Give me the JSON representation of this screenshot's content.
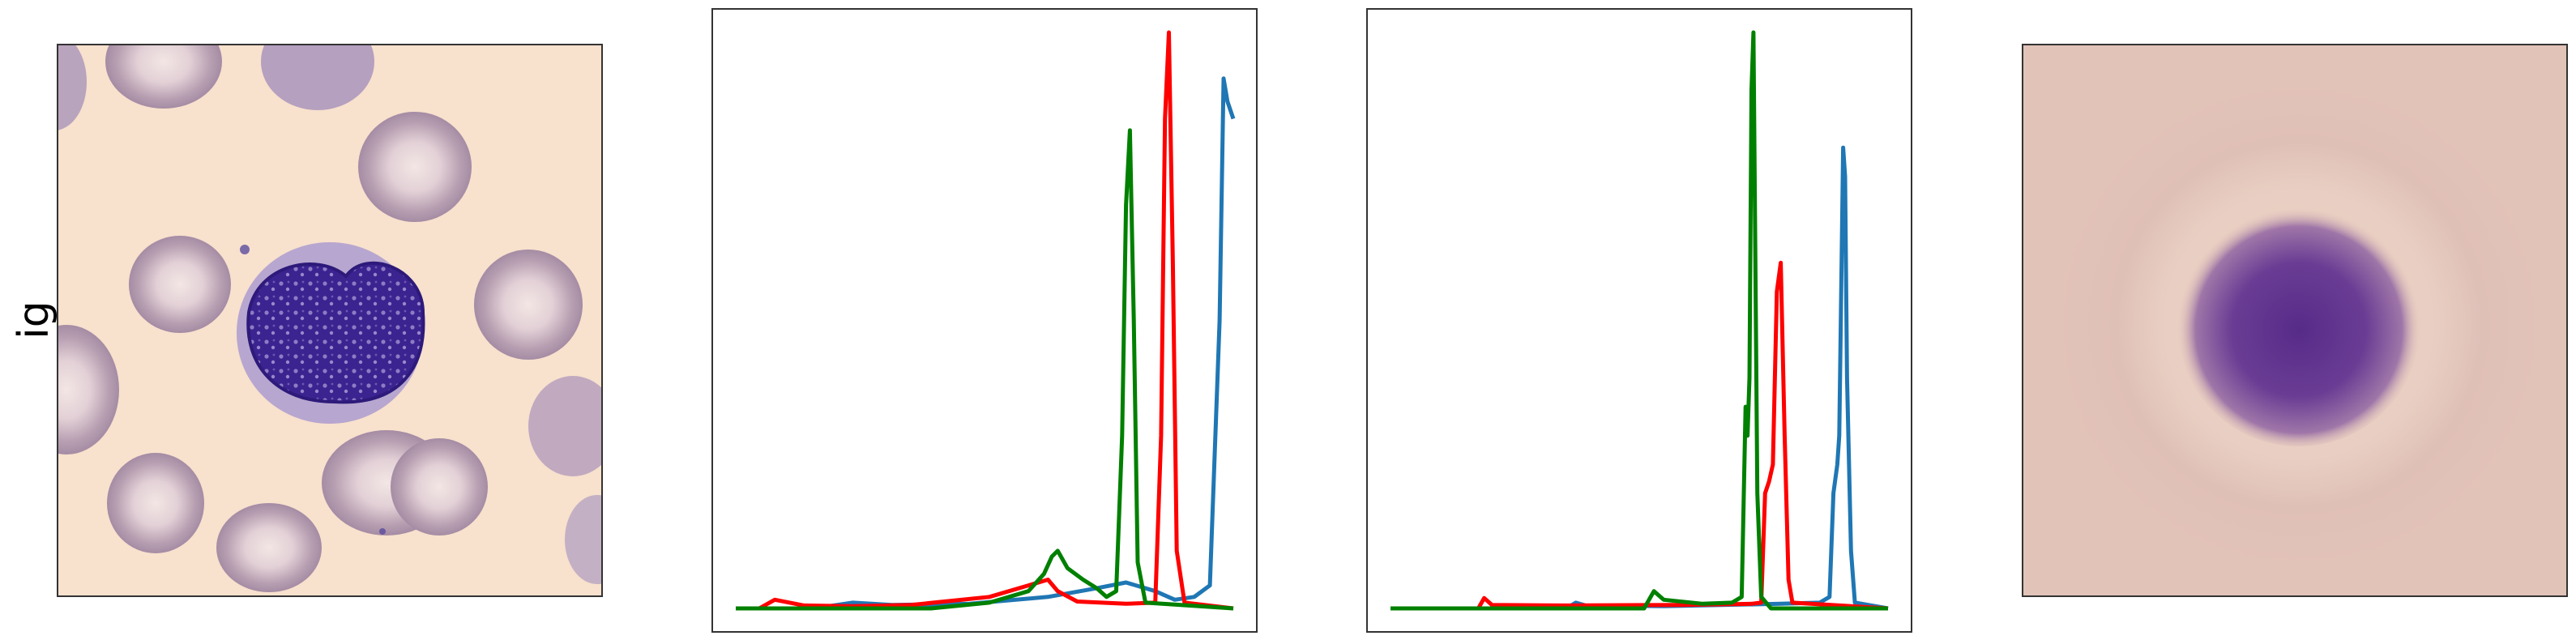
{
  "row_label": "ig",
  "colors": {
    "red": "#ff0000",
    "green": "#008000",
    "blue": "#1f77b4",
    "smear_background": "#f8e0cc",
    "rbc": "#c4a8b4",
    "nucleus": "#3a1f86",
    "mean_image_background": "#e2c3b8",
    "mean_image_center": "#5b2e8c"
  },
  "panels": {
    "image": {
      "icon": "blood-smear-image",
      "description_class": "immature granulocyte cell photo"
    },
    "mean_image": {
      "icon": "averaged-cell-image"
    }
  },
  "chart_data": [
    {
      "type": "line",
      "title": "",
      "xlabel": "",
      "ylabel": "",
      "grid": false,
      "xlim": [
        0,
        255
      ],
      "ylim": [
        0,
        1
      ],
      "series": [
        {
          "color": "#1f77b4",
          "points": [
            [
              0,
              0
            ],
            [
              40,
              0
            ],
            [
              60,
              0.01
            ],
            [
              80,
              0.006
            ],
            [
              120,
              0.008
            ],
            [
              160,
              0.02
            ],
            [
              185,
              0.035
            ],
            [
              200,
              0.045
            ],
            [
              215,
              0.03
            ],
            [
              225,
              0.015
            ],
            [
              235,
              0.02
            ],
            [
              243,
              0.04
            ],
            [
              248,
              0.5
            ],
            [
              250,
              0.92
            ],
            [
              252,
              0.88
            ],
            [
              255,
              0.85
            ]
          ]
        },
        {
          "color": "#ff0000",
          "points": [
            [
              0,
              0
            ],
            [
              12,
              0
            ],
            [
              20,
              0.015
            ],
            [
              35,
              0.005
            ],
            [
              60,
              0.004
            ],
            [
              90,
              0.006
            ],
            [
              130,
              0.02
            ],
            [
              150,
              0.04
            ],
            [
              160,
              0.05
            ],
            [
              165,
              0.03
            ],
            [
              175,
              0.012
            ],
            [
              200,
              0.008
            ],
            [
              215,
              0.01
            ],
            [
              218,
              0.3
            ],
            [
              220,
              0.85
            ],
            [
              222,
              1.0
            ],
            [
              224,
              0.6
            ],
            [
              226,
              0.1
            ],
            [
              230,
              0.01
            ],
            [
              255,
              0
            ]
          ]
        },
        {
          "color": "#008000",
          "points": [
            [
              0,
              0
            ],
            [
              100,
              0
            ],
            [
              130,
              0.01
            ],
            [
              150,
              0.03
            ],
            [
              158,
              0.06
            ],
            [
              162,
              0.09
            ],
            [
              165,
              0.1
            ],
            [
              170,
              0.07
            ],
            [
              178,
              0.05
            ],
            [
              185,
              0.035
            ],
            [
              190,
              0.02
            ],
            [
              195,
              0.03
            ],
            [
              198,
              0.3
            ],
            [
              200,
              0.7
            ],
            [
              202,
              0.83
            ],
            [
              204,
              0.5
            ],
            [
              206,
              0.08
            ],
            [
              210,
              0.01
            ],
            [
              255,
              0
            ]
          ]
        }
      ]
    },
    {
      "type": "line",
      "title": "",
      "xlabel": "",
      "ylabel": "",
      "grid": false,
      "xlim": [
        0,
        255
      ],
      "ylim": [
        0,
        1
      ],
      "series": [
        {
          "color": "#1f77b4",
          "points": [
            [
              0,
              0
            ],
            [
              90,
              0
            ],
            [
              95,
              0.01
            ],
            [
              100,
              0.005
            ],
            [
              140,
              0.004
            ],
            [
              200,
              0.008
            ],
            [
              220,
              0.01
            ],
            [
              225,
              0.02
            ],
            [
              227,
              0.2
            ],
            [
              229,
              0.25
            ],
            [
              230,
              0.3
            ],
            [
              231,
              0.55
            ],
            [
              232,
              0.8
            ],
            [
              233,
              0.75
            ],
            [
              234,
              0.4
            ],
            [
              236,
              0.1
            ],
            [
              238,
              0.01
            ],
            [
              255,
              0
            ]
          ]
        },
        {
          "color": "#ff0000",
          "points": [
            [
              0,
              0
            ],
            [
              45,
              0
            ],
            [
              48,
              0.018
            ],
            [
              52,
              0.006
            ],
            [
              90,
              0.005
            ],
            [
              150,
              0.006
            ],
            [
              185,
              0.008
            ],
            [
              190,
              0.01
            ],
            [
              192,
              0.2
            ],
            [
              194,
              0.22
            ],
            [
              196,
              0.25
            ],
            [
              198,
              0.55
            ],
            [
              200,
              0.6
            ],
            [
              202,
              0.3
            ],
            [
              204,
              0.05
            ],
            [
              206,
              0.01
            ],
            [
              255,
              0
            ]
          ]
        },
        {
          "color": "#008000",
          "points": [
            [
              0,
              0
            ],
            [
              130,
              0
            ],
            [
              135,
              0.03
            ],
            [
              140,
              0.015
            ],
            [
              160,
              0.008
            ],
            [
              175,
              0.01
            ],
            [
              180,
              0.02
            ],
            [
              182,
              0.35
            ],
            [
              183,
              0.3
            ],
            [
              184,
              0.4
            ],
            [
              185,
              0.9
            ],
            [
              186,
              1.0
            ],
            [
              187,
              0.6
            ],
            [
              188,
              0.2
            ],
            [
              190,
              0.02
            ],
            [
              195,
              0
            ],
            [
              255,
              0
            ]
          ]
        }
      ]
    }
  ]
}
